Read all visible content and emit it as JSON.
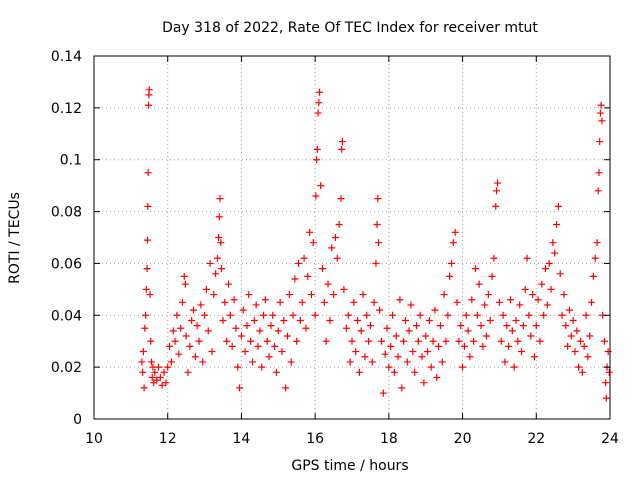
{
  "chart_data": {
    "type": "scatter",
    "title": "Day 318 of 2022, Rate Of TEC Index for receiver mtut",
    "xlabel": "GPS time / hours",
    "ylabel": "ROTI / TECUs",
    "xlim": [
      10,
      24
    ],
    "ylim": [
      0,
      0.14
    ],
    "x_ticks": [
      10,
      12,
      14,
      16,
      18,
      20,
      22,
      24
    ],
    "x_tick_labels": [
      "10",
      "12",
      "14",
      "16",
      "18",
      "20",
      "22",
      "24"
    ],
    "y_ticks": [
      0,
      0.02,
      0.04,
      0.06,
      0.08,
      0.1,
      0.12,
      0.14
    ],
    "y_tick_labels": [
      "0",
      "0.02",
      "0.04",
      "0.06",
      "0.08",
      "0.1",
      "0.12",
      "0.14"
    ],
    "grid": true,
    "marker": "+",
    "color": "#ff0000",
    "series": [
      {
        "name": "ROTI",
        "points": [
          [
            11.3,
            0.022
          ],
          [
            11.32,
            0.018
          ],
          [
            11.34,
            0.026
          ],
          [
            11.36,
            0.012
          ],
          [
            11.38,
            0.035
          ],
          [
            11.4,
            0.04
          ],
          [
            11.42,
            0.05
          ],
          [
            11.44,
            0.058
          ],
          [
            11.45,
            0.069
          ],
          [
            11.46,
            0.082
          ],
          [
            11.47,
            0.095
          ],
          [
            11.48,
            0.121
          ],
          [
            11.49,
            0.125
          ],
          [
            11.5,
            0.127
          ],
          [
            11.52,
            0.048
          ],
          [
            11.54,
            0.03
          ],
          [
            11.56,
            0.022
          ],
          [
            11.58,
            0.016
          ],
          [
            11.6,
            0.02
          ],
          [
            11.62,
            0.014
          ],
          [
            11.65,
            0.018
          ],
          [
            11.7,
            0.015
          ],
          [
            11.75,
            0.02
          ],
          [
            11.8,
            0.016
          ],
          [
            11.85,
            0.013
          ],
          [
            11.9,
            0.018
          ],
          [
            11.95,
            0.014
          ],
          [
            12.0,
            0.02
          ],
          [
            12.05,
            0.028
          ],
          [
            12.1,
            0.022
          ],
          [
            12.15,
            0.034
          ],
          [
            12.2,
            0.03
          ],
          [
            12.25,
            0.04
          ],
          [
            12.3,
            0.025
          ],
          [
            12.35,
            0.035
          ],
          [
            12.4,
            0.045
          ],
          [
            12.45,
            0.055
          ],
          [
            12.48,
            0.052
          ],
          [
            12.5,
            0.032
          ],
          [
            12.55,
            0.018
          ],
          [
            12.6,
            0.028
          ],
          [
            12.65,
            0.038
          ],
          [
            12.7,
            0.042
          ],
          [
            12.75,
            0.024
          ],
          [
            12.8,
            0.036
          ],
          [
            12.85,
            0.03
          ],
          [
            12.9,
            0.044
          ],
          [
            12.95,
            0.022
          ],
          [
            13.0,
            0.04
          ],
          [
            13.05,
            0.05
          ],
          [
            13.1,
            0.034
          ],
          [
            13.15,
            0.06
          ],
          [
            13.2,
            0.026
          ],
          [
            13.25,
            0.048
          ],
          [
            13.3,
            0.056
          ],
          [
            13.35,
            0.062
          ],
          [
            13.38,
            0.07
          ],
          [
            13.4,
            0.078
          ],
          [
            13.42,
            0.085
          ],
          [
            13.44,
            0.068
          ],
          [
            13.46,
            0.058
          ],
          [
            13.5,
            0.038
          ],
          [
            13.55,
            0.045
          ],
          [
            13.6,
            0.03
          ],
          [
            13.65,
            0.052
          ],
          [
            13.7,
            0.04
          ],
          [
            13.75,
            0.028
          ],
          [
            13.8,
            0.046
          ],
          [
            13.85,
            0.035
          ],
          [
            13.9,
            0.02
          ],
          [
            13.95,
            0.012
          ],
          [
            14.0,
            0.032
          ],
          [
            14.05,
            0.042
          ],
          [
            14.1,
            0.026
          ],
          [
            14.15,
            0.036
          ],
          [
            14.2,
            0.048
          ],
          [
            14.25,
            0.03
          ],
          [
            14.3,
            0.022
          ],
          [
            14.35,
            0.038
          ],
          [
            14.4,
            0.044
          ],
          [
            14.45,
            0.028
          ],
          [
            14.5,
            0.034
          ],
          [
            14.55,
            0.02
          ],
          [
            14.6,
            0.04
          ],
          [
            14.65,
            0.046
          ],
          [
            14.7,
            0.03
          ],
          [
            14.75,
            0.024
          ],
          [
            14.8,
            0.036
          ],
          [
            14.85,
            0.04
          ],
          [
            14.9,
            0.028
          ],
          [
            14.95,
            0.018
          ],
          [
            15.0,
            0.034
          ],
          [
            15.05,
            0.045
          ],
          [
            15.1,
            0.026
          ],
          [
            15.15,
            0.038
          ],
          [
            15.2,
            0.012
          ],
          [
            15.25,
            0.032
          ],
          [
            15.3,
            0.048
          ],
          [
            15.35,
            0.022
          ],
          [
            15.4,
            0.04
          ],
          [
            15.45,
            0.054
          ],
          [
            15.5,
            0.03
          ],
          [
            15.55,
            0.06
          ],
          [
            15.6,
            0.038
          ],
          [
            15.65,
            0.045
          ],
          [
            15.7,
            0.062
          ],
          [
            15.75,
            0.035
          ],
          [
            15.8,
            0.055
          ],
          [
            15.85,
            0.072
          ],
          [
            15.9,
            0.048
          ],
          [
            15.95,
            0.068
          ],
          [
            16.0,
            0.04
          ],
          [
            16.02,
            0.086
          ],
          [
            16.04,
            0.1
          ],
          [
            16.06,
            0.104
          ],
          [
            16.08,
            0.118
          ],
          [
            16.1,
            0.122
          ],
          [
            16.12,
            0.126
          ],
          [
            16.15,
            0.09
          ],
          [
            16.2,
            0.058
          ],
          [
            16.25,
            0.045
          ],
          [
            16.3,
            0.03
          ],
          [
            16.35,
            0.052
          ],
          [
            16.4,
            0.038
          ],
          [
            16.45,
            0.066
          ],
          [
            16.5,
            0.048
          ],
          [
            16.55,
            0.07
          ],
          [
            16.6,
            0.062
          ],
          [
            16.65,
            0.075
          ],
          [
            16.7,
            0.085
          ],
          [
            16.72,
            0.104
          ],
          [
            16.74,
            0.107
          ],
          [
            16.78,
            0.05
          ],
          [
            16.85,
            0.035
          ],
          [
            16.9,
            0.04
          ],
          [
            16.95,
            0.022
          ],
          [
            17.0,
            0.03
          ],
          [
            17.05,
            0.045
          ],
          [
            17.1,
            0.026
          ],
          [
            17.15,
            0.038
          ],
          [
            17.2,
            0.018
          ],
          [
            17.25,
            0.034
          ],
          [
            17.3,
            0.048
          ],
          [
            17.35,
            0.024
          ],
          [
            17.4,
            0.04
          ],
          [
            17.45,
            0.03
          ],
          [
            17.5,
            0.036
          ],
          [
            17.55,
            0.022
          ],
          [
            17.6,
            0.045
          ],
          [
            17.65,
            0.06
          ],
          [
            17.68,
            0.075
          ],
          [
            17.7,
            0.085
          ],
          [
            17.72,
            0.068
          ],
          [
            17.75,
            0.042
          ],
          [
            17.8,
            0.03
          ],
          [
            17.85,
            0.01
          ],
          [
            17.9,
            0.025
          ],
          [
            17.95,
            0.035
          ],
          [
            18.0,
            0.02
          ],
          [
            18.05,
            0.028
          ],
          [
            18.1,
            0.04
          ],
          [
            18.15,
            0.018
          ],
          [
            18.2,
            0.032
          ],
          [
            18.25,
            0.024
          ],
          [
            18.3,
            0.046
          ],
          [
            18.35,
            0.012
          ],
          [
            18.4,
            0.03
          ],
          [
            18.45,
            0.038
          ],
          [
            18.5,
            0.022
          ],
          [
            18.55,
            0.034
          ],
          [
            18.6,
            0.044
          ],
          [
            18.65,
            0.026
          ],
          [
            18.7,
            0.018
          ],
          [
            18.75,
            0.036
          ],
          [
            18.8,
            0.03
          ],
          [
            18.85,
            0.04
          ],
          [
            18.9,
            0.024
          ],
          [
            18.95,
            0.014
          ],
          [
            19.0,
            0.032
          ],
          [
            19.05,
            0.026
          ],
          [
            19.1,
            0.038
          ],
          [
            19.15,
            0.02
          ],
          [
            19.2,
            0.03
          ],
          [
            19.25,
            0.042
          ],
          [
            19.3,
            0.016
          ],
          [
            19.35,
            0.028
          ],
          [
            19.4,
            0.036
          ],
          [
            19.45,
            0.022
          ],
          [
            19.5,
            0.048
          ],
          [
            19.55,
            0.03
          ],
          [
            19.6,
            0.04
          ],
          [
            19.65,
            0.055
          ],
          [
            19.7,
            0.06
          ],
          [
            19.75,
            0.068
          ],
          [
            19.8,
            0.072
          ],
          [
            19.85,
            0.045
          ],
          [
            19.9,
            0.03
          ],
          [
            19.95,
            0.036
          ],
          [
            20.0,
            0.02
          ],
          [
            20.05,
            0.028
          ],
          [
            20.1,
            0.04
          ],
          [
            20.15,
            0.034
          ],
          [
            20.2,
            0.024
          ],
          [
            20.25,
            0.046
          ],
          [
            20.3,
            0.03
          ],
          [
            20.35,
            0.058
          ],
          [
            20.4,
            0.04
          ],
          [
            20.45,
            0.052
          ],
          [
            20.5,
            0.036
          ],
          [
            20.55,
            0.028
          ],
          [
            20.6,
            0.044
          ],
          [
            20.65,
            0.032
          ],
          [
            20.7,
            0.048
          ],
          [
            20.75,
            0.038
          ],
          [
            20.8,
            0.055
          ],
          [
            20.85,
            0.062
          ],
          [
            20.9,
            0.082
          ],
          [
            20.92,
            0.088
          ],
          [
            20.95,
            0.091
          ],
          [
            21.0,
            0.045
          ],
          [
            21.05,
            0.03
          ],
          [
            21.1,
            0.04
          ],
          [
            21.15,
            0.022
          ],
          [
            21.2,
            0.036
          ],
          [
            21.25,
            0.028
          ],
          [
            21.3,
            0.046
          ],
          [
            21.35,
            0.034
          ],
          [
            21.4,
            0.02
          ],
          [
            21.45,
            0.038
          ],
          [
            21.5,
            0.03
          ],
          [
            21.55,
            0.044
          ],
          [
            21.6,
            0.026
          ],
          [
            21.65,
            0.036
          ],
          [
            21.7,
            0.05
          ],
          [
            21.75,
            0.062
          ],
          [
            21.8,
            0.04
          ],
          [
            21.85,
            0.032
          ],
          [
            21.9,
            0.048
          ],
          [
            21.95,
            0.024
          ],
          [
            22.0,
            0.036
          ],
          [
            22.05,
            0.046
          ],
          [
            22.1,
            0.03
          ],
          [
            22.15,
            0.052
          ],
          [
            22.2,
            0.04
          ],
          [
            22.25,
            0.058
          ],
          [
            22.3,
            0.044
          ],
          [
            22.35,
            0.06
          ],
          [
            22.4,
            0.05
          ],
          [
            22.45,
            0.068
          ],
          [
            22.5,
            0.064
          ],
          [
            22.55,
            0.075
          ],
          [
            22.6,
            0.082
          ],
          [
            22.65,
            0.056
          ],
          [
            22.7,
            0.04
          ],
          [
            22.75,
            0.048
          ],
          [
            22.8,
            0.036
          ],
          [
            22.85,
            0.028
          ],
          [
            22.9,
            0.042
          ],
          [
            22.95,
            0.032
          ],
          [
            23.0,
            0.038
          ],
          [
            23.05,
            0.026
          ],
          [
            23.1,
            0.034
          ],
          [
            23.15,
            0.02
          ],
          [
            23.2,
            0.03
          ],
          [
            23.25,
            0.018
          ],
          [
            23.3,
            0.028
          ],
          [
            23.35,
            0.04
          ],
          [
            23.4,
            0.024
          ],
          [
            23.45,
            0.032
          ],
          [
            23.5,
            0.045
          ],
          [
            23.55,
            0.055
          ],
          [
            23.6,
            0.062
          ],
          [
            23.65,
            0.068
          ],
          [
            23.68,
            0.088
          ],
          [
            23.7,
            0.095
          ],
          [
            23.72,
            0.107
          ],
          [
            23.74,
            0.118
          ],
          [
            23.76,
            0.121
          ],
          [
            23.78,
            0.115
          ],
          [
            23.8,
            0.04
          ],
          [
            23.85,
            0.03
          ],
          [
            23.88,
            0.014
          ],
          [
            23.9,
            0.008
          ],
          [
            23.92,
            0.02
          ],
          [
            23.95,
            0.026
          ],
          [
            23.98,
            0.018
          ]
        ]
      }
    ]
  }
}
